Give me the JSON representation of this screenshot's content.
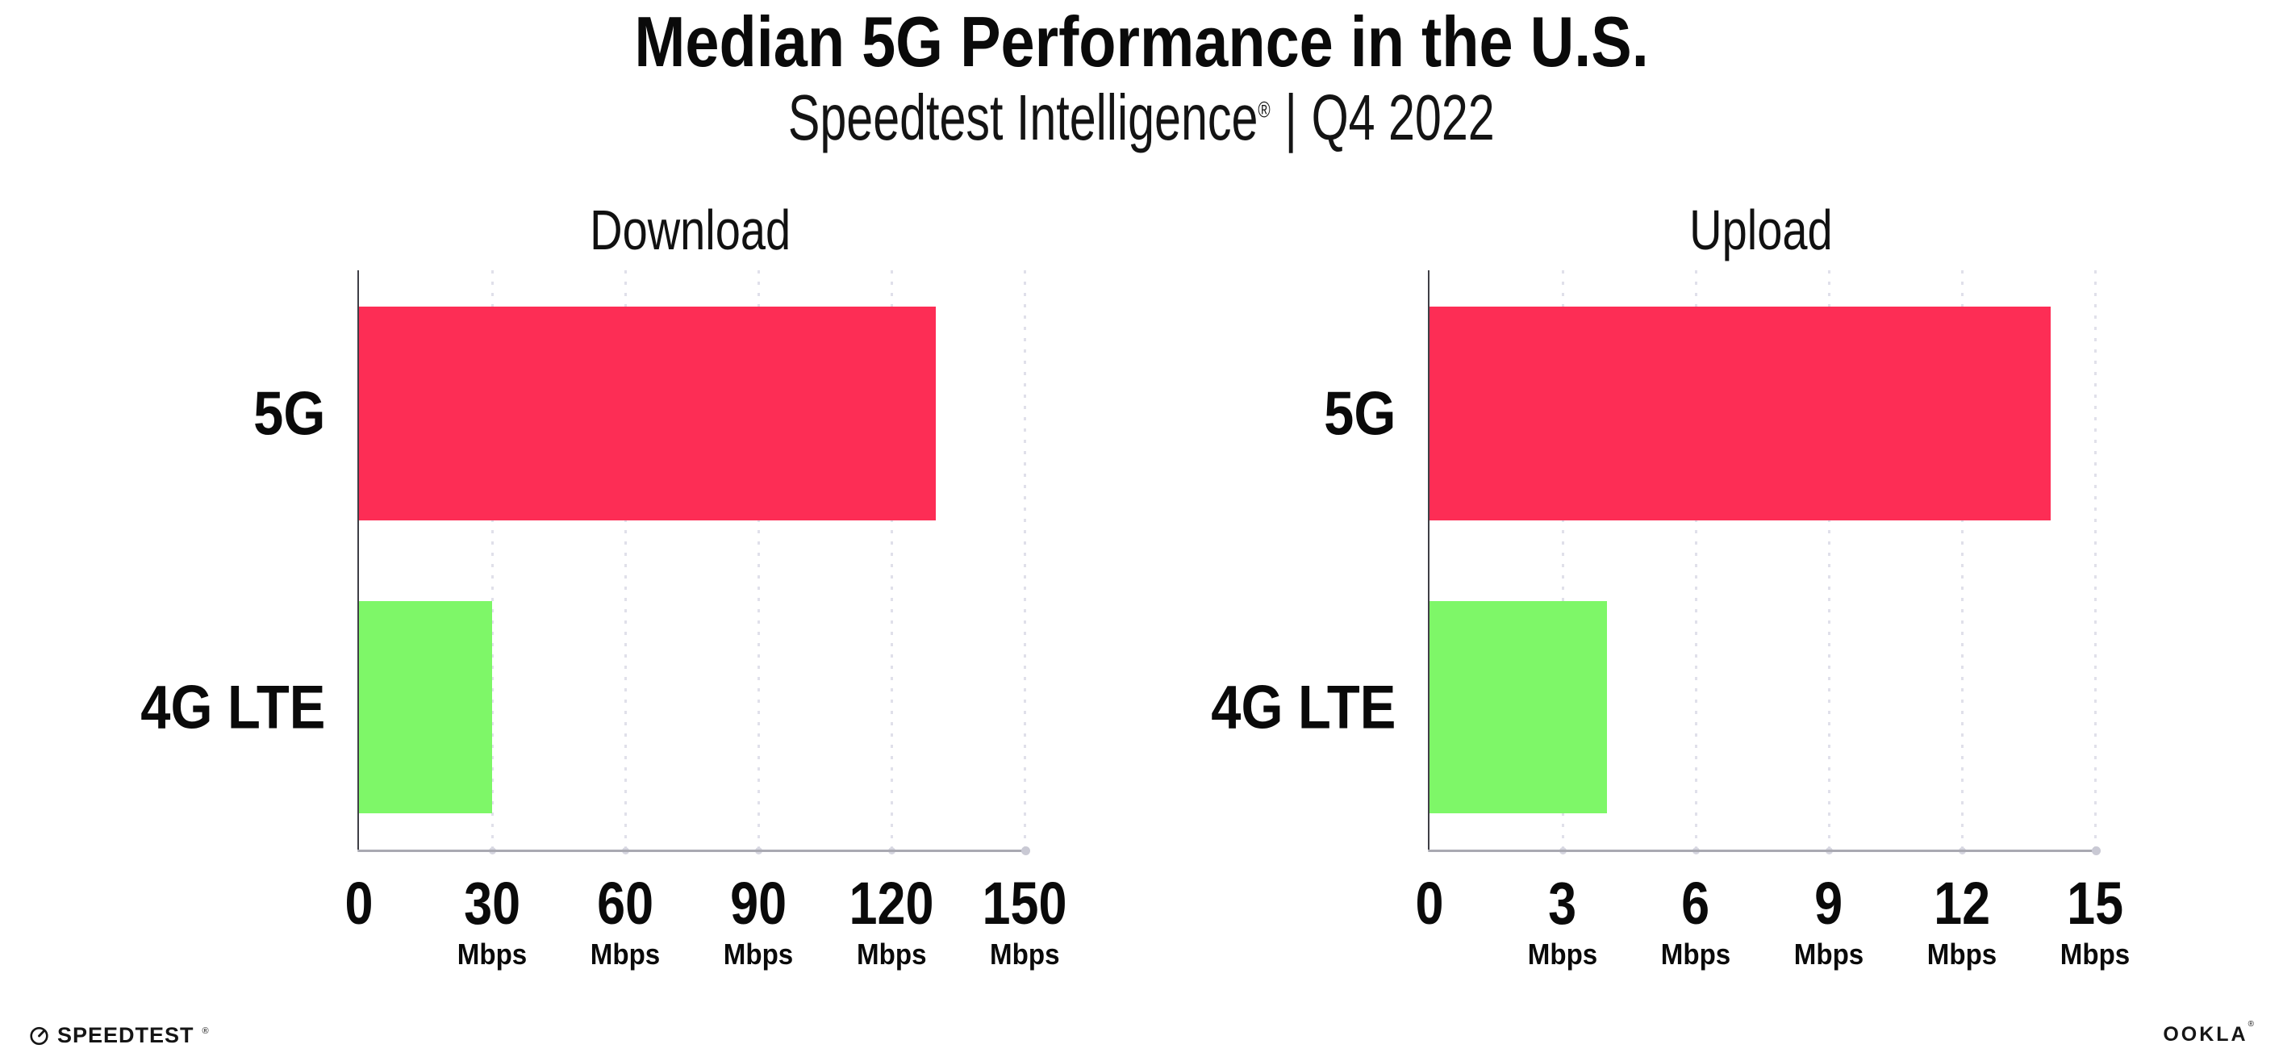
{
  "header": {
    "title": "Median 5G Performance in the U.S.",
    "subtitle": {
      "brand": "Speedtest Intelligence",
      "mark": "®",
      "separator": "|",
      "period": "Q4 2022"
    }
  },
  "chart_data": [
    {
      "type": "bar",
      "orientation": "horizontal",
      "title": "Download",
      "categories": [
        "5G",
        "4G LTE"
      ],
      "values": [
        130,
        30
      ],
      "unit": "Mbps",
      "xlim": [
        0,
        150
      ],
      "xticks": [
        0,
        30,
        60,
        90,
        120,
        150
      ],
      "bar_colors": [
        "#FD2D55",
        "#7EF768"
      ],
      "grid": "dotted-vertical-at-ticks",
      "legend": "none",
      "show_unit_on_zero_tick": false
    },
    {
      "type": "bar",
      "orientation": "horizontal",
      "title": "Upload",
      "categories": [
        "5G",
        "4G LTE"
      ],
      "values": [
        14,
        4
      ],
      "unit": "Mbps",
      "xlim": [
        0,
        15
      ],
      "xticks": [
        0,
        3,
        6,
        9,
        12,
        15
      ],
      "bar_colors": [
        "#FD2D55",
        "#7EF768"
      ],
      "grid": "dotted-vertical-at-ticks",
      "legend": "none",
      "show_unit_on_zero_tick": false
    }
  ],
  "footer": {
    "speedtest_label": "SPEEDTEST",
    "speedtest_mark": "®",
    "ookla_label": "OOKLA",
    "ookla_mark": "®"
  },
  "colors": {
    "bar_5g": "#FD2D55",
    "bar_4g_lte": "#7EF768",
    "axis_baseline": "#A9A9B2",
    "axis_y": "#3F3F46",
    "gridline": "#E0E0EA",
    "text": "#0A0A0A",
    "background": "#FFFFFF"
  }
}
